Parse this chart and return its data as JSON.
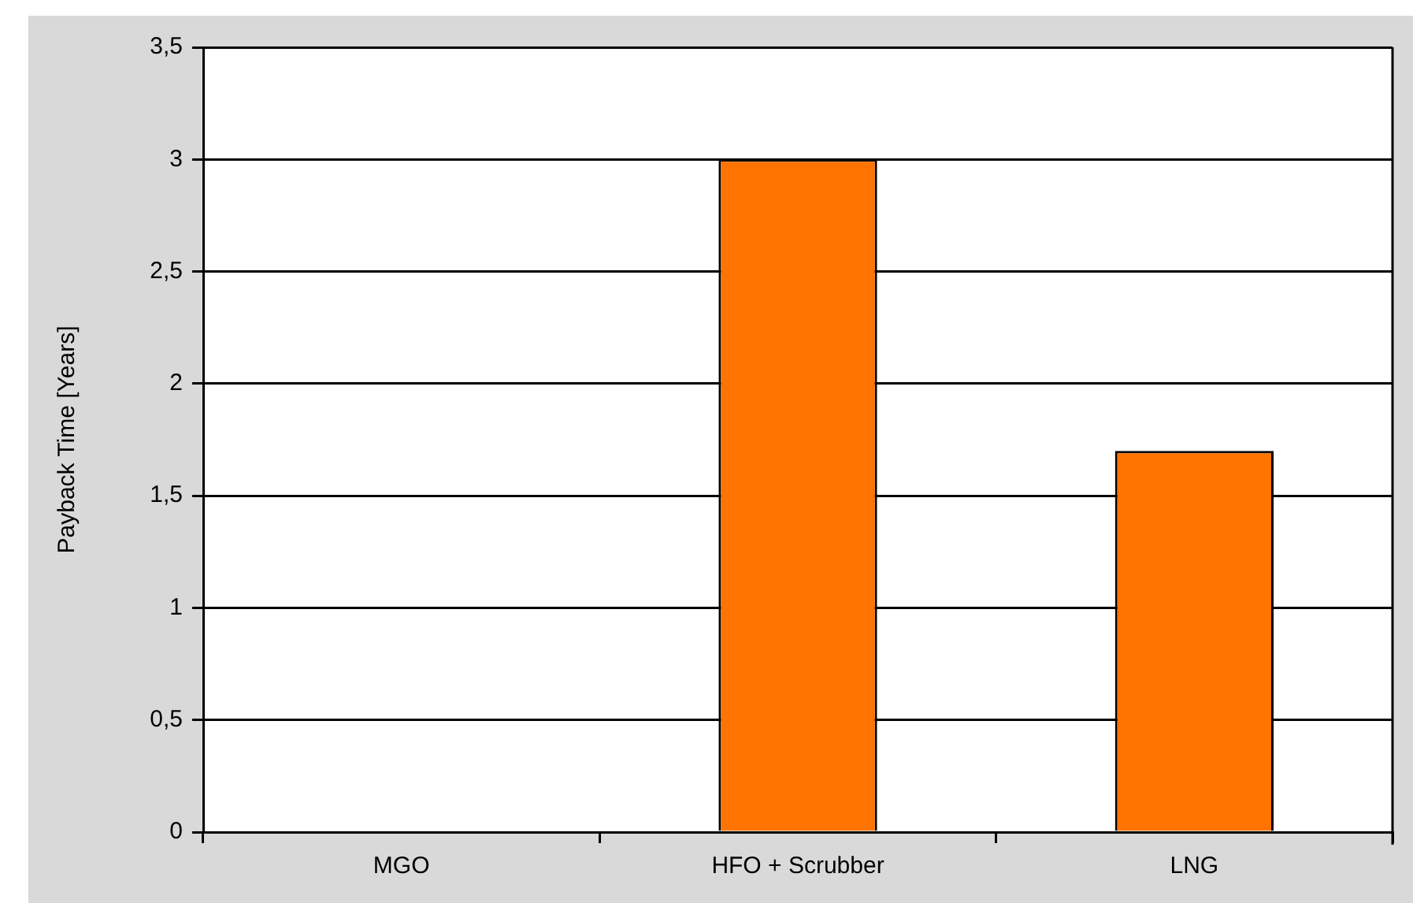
{
  "chart_data": {
    "type": "bar",
    "ylabel": "Payback Time [Years]",
    "categories": [
      "MGO",
      "HFO + Scrubber",
      "LNG"
    ],
    "values": [
      0,
      3,
      1.7
    ],
    "color": "#ff7300",
    "ylim": [
      0,
      3.5
    ],
    "yticks": [
      0,
      {
        "value": 0.5,
        "label": "0,5"
      },
      1,
      {
        "value": 1.5,
        "label": "1,5"
      },
      2,
      {
        "value": 2.5,
        "label": "2,5"
      },
      3,
      {
        "value": 3.5,
        "label": "3,5"
      }
    ],
    "grid": "y",
    "legend": false
  }
}
